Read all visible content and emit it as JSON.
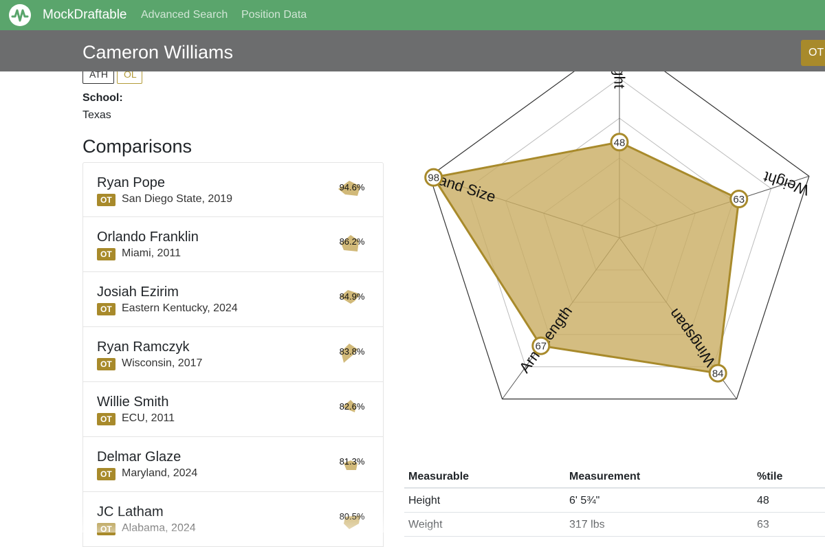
{
  "navbar": {
    "brand": "MockDraftable",
    "links": [
      "Advanced Search",
      "Position Data"
    ]
  },
  "player": {
    "name": "Cameron Williams",
    "position_button": "OT",
    "tags": [
      "ATH",
      "OL"
    ],
    "school_label": "School:",
    "school": "Texas"
  },
  "comparisons": {
    "title": "Comparisons",
    "items": [
      {
        "name": "Ryan Pope",
        "pos": "OT",
        "school_year": "San Diego State, 2019",
        "pct": "94.6%"
      },
      {
        "name": "Orlando Franklin",
        "pos": "OT",
        "school_year": "Miami, 2011",
        "pct": "86.2%"
      },
      {
        "name": "Josiah Ezirim",
        "pos": "OT",
        "school_year": "Eastern Kentucky, 2024",
        "pct": "84.9%"
      },
      {
        "name": "Ryan Ramczyk",
        "pos": "OT",
        "school_year": "Wisconsin, 2017",
        "pct": "83.8%"
      },
      {
        "name": "Willie Smith",
        "pos": "OT",
        "school_year": "ECU, 2011",
        "pct": "82.6%"
      },
      {
        "name": "Delmar Glaze",
        "pos": "OT",
        "school_year": "Maryland, 2024",
        "pct": "81.3%"
      },
      {
        "name": "JC Latham",
        "pos": "OT",
        "school_year": "Alabama, 2024",
        "pct": "80.5%"
      }
    ]
  },
  "chart_data": {
    "type": "radar",
    "axes": [
      "Height",
      "Weight",
      "Wingspan",
      "Arm Length",
      "Hand Size"
    ],
    "visible_axis_labels": [
      "ight",
      "Weight",
      "Wingspan",
      "Arm Length",
      "Hand Size"
    ],
    "values": [
      48,
      63,
      84,
      67,
      98
    ],
    "range": [
      0,
      100
    ],
    "fill_color": "#c9ad62",
    "stroke_color": "#a88a2b"
  },
  "measurables": {
    "headers": [
      "Measurable",
      "Measurement",
      "%tile"
    ],
    "rows": [
      [
        "Height",
        "6' 5¾\"",
        "48"
      ],
      [
        "Weight",
        "317 lbs",
        "63"
      ]
    ]
  },
  "colors": {
    "navbar": "#5aa56c",
    "subheader": "#6c6d6e",
    "accent": "#a88a2b"
  },
  "icons": {
    "logo": "wave-circle-icon"
  }
}
